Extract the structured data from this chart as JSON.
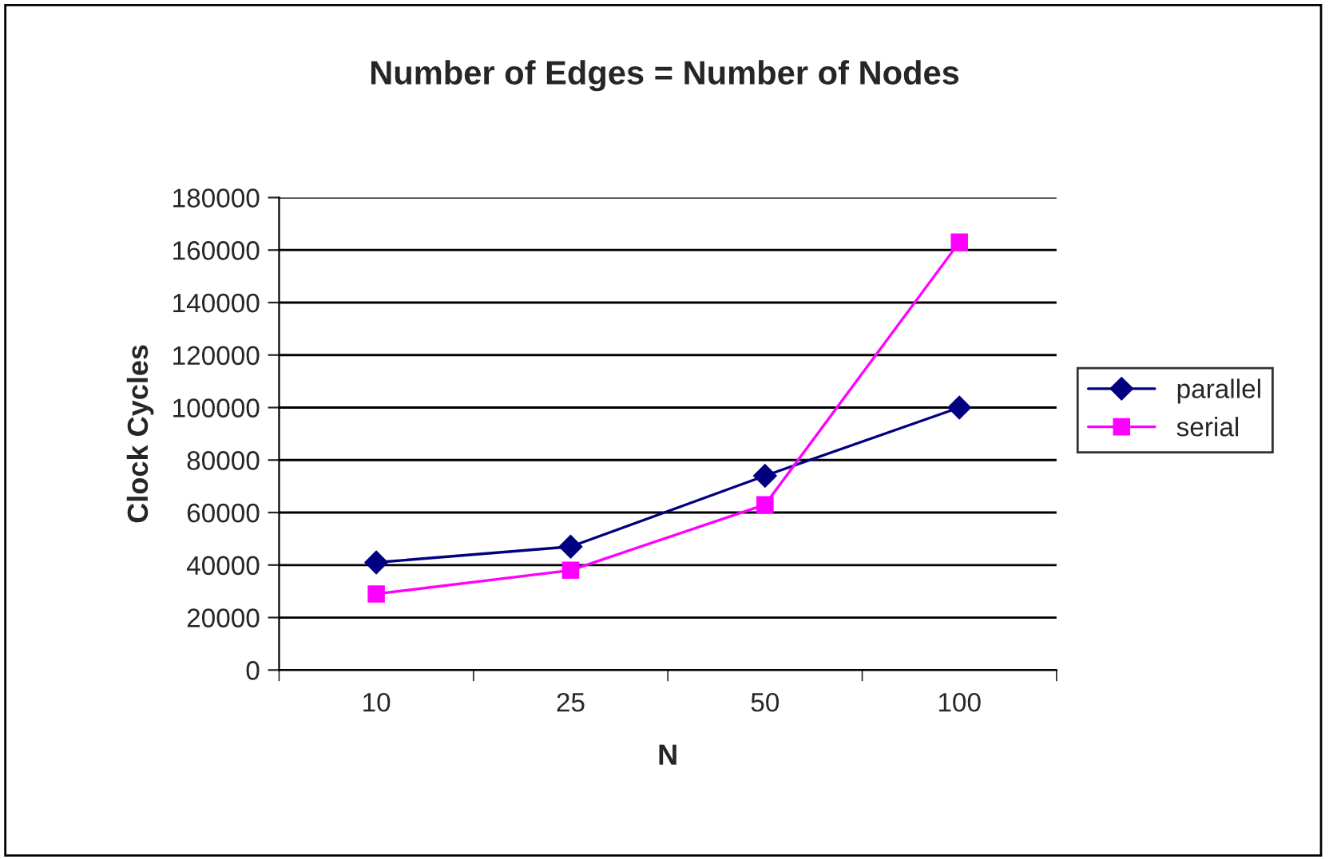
{
  "chart_data": {
    "type": "line",
    "title": "Number of Edges = Number of Nodes",
    "xlabel": "N",
    "ylabel": "Clock Cycles",
    "categories": [
      "10",
      "25",
      "50",
      "100"
    ],
    "series": [
      {
        "name": "parallel",
        "color": "#000080",
        "marker": "diamond",
        "values": [
          41000,
          47000,
          74000,
          100000
        ]
      },
      {
        "name": "serial",
        "color": "#ff00ff",
        "marker": "square",
        "values": [
          29000,
          38000,
          63000,
          163000
        ]
      }
    ],
    "ylim": [
      0,
      180000
    ],
    "yticks": [
      0,
      20000,
      40000,
      60000,
      80000,
      100000,
      120000,
      140000,
      160000,
      180000
    ],
    "grid": "y",
    "legend": "right",
    "line_style": "solid"
  }
}
